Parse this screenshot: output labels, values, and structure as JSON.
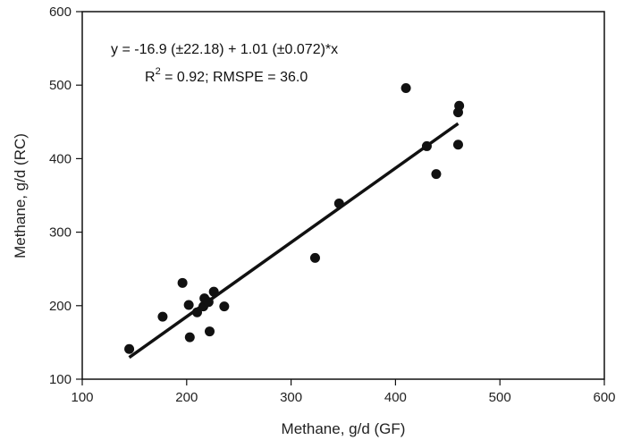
{
  "chart_data": {
    "type": "scatter",
    "xlabel": "Methane, g/d (GF)",
    "ylabel": "Methane, g/d (RC)",
    "xlim": [
      100,
      600
    ],
    "ylim": [
      100,
      600
    ],
    "xticks": [
      "100",
      "200",
      "300",
      "400",
      "500",
      "600"
    ],
    "yticks": [
      "100",
      "200",
      "300",
      "400",
      "500",
      "600"
    ],
    "grid": false,
    "annotation_line1": "y = -16.9 (±22.18) + 1.01 (±0.072)*x",
    "annotation_line2_prefix": "R",
    "annotation_line2_sup": "2",
    "annotation_line2_suffix": " = 0.92; RMSPE = 36.0",
    "regression": {
      "intercept": -16.9,
      "slope": 1.01,
      "x_range": [
        145,
        460
      ]
    },
    "points": [
      {
        "x": 145,
        "y": 141
      },
      {
        "x": 177,
        "y": 185
      },
      {
        "x": 196,
        "y": 231
      },
      {
        "x": 202,
        "y": 201
      },
      {
        "x": 203,
        "y": 157
      },
      {
        "x": 210,
        "y": 191
      },
      {
        "x": 216,
        "y": 199
      },
      {
        "x": 217,
        "y": 210
      },
      {
        "x": 221,
        "y": 205
      },
      {
        "x": 222,
        "y": 165
      },
      {
        "x": 226,
        "y": 219
      },
      {
        "x": 236,
        "y": 199
      },
      {
        "x": 323,
        "y": 265
      },
      {
        "x": 346,
        "y": 339
      },
      {
        "x": 410,
        "y": 496
      },
      {
        "x": 430,
        "y": 417
      },
      {
        "x": 439,
        "y": 379
      },
      {
        "x": 460,
        "y": 463
      },
      {
        "x": 460,
        "y": 419
      },
      {
        "x": 461,
        "y": 472
      }
    ]
  }
}
